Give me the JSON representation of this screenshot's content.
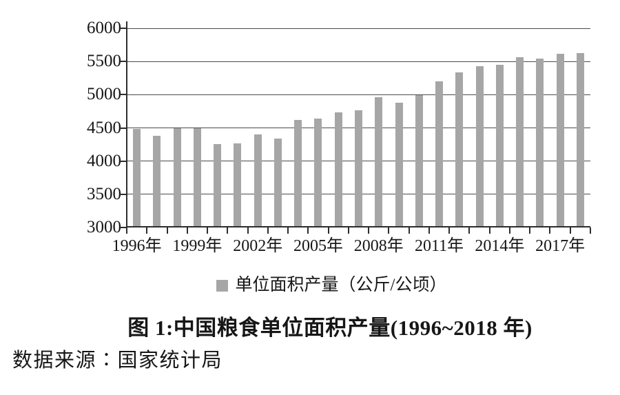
{
  "page": {
    "background": "#ffffff"
  },
  "chart_data": {
    "type": "bar",
    "title": "图 1:中国粮食单位面积产量(1996~2018 年)",
    "legend_label": "单位面积产量（公斤/公顷）",
    "legend_position": "bottom",
    "source_note": "数据来源∶国家统计局",
    "xlabel": "",
    "ylabel": "",
    "ylim": [
      3000,
      6000
    ],
    "y_ticks": [
      3000,
      3500,
      4000,
      4500,
      5000,
      5500,
      6000
    ],
    "grid": true,
    "categories": [
      "1996年",
      "1997年",
      "1998年",
      "1999年",
      "2000年",
      "2001年",
      "2002年",
      "2003年",
      "2004年",
      "2005年",
      "2006年",
      "2007年",
      "2008年",
      "2009年",
      "2010年",
      "2011年",
      "2012年",
      "2013年",
      "2014年",
      "2015年",
      "2016年",
      "2017年",
      "2018年"
    ],
    "values": [
      4480,
      4380,
      4500,
      4495,
      4260,
      4270,
      4400,
      4335,
      4620,
      4640,
      4730,
      4760,
      4960,
      4880,
      4995,
      5205,
      5335,
      5425,
      5455,
      5560,
      5540,
      5615,
      5625
    ],
    "series": [
      {
        "name": "单位面积产量（公斤/公顷）",
        "values": [
          4480,
          4380,
          4500,
          4495,
          4260,
          4270,
          4400,
          4335,
          4620,
          4640,
          4730,
          4760,
          4960,
          4880,
          4995,
          5205,
          5335,
          5425,
          5455,
          5560,
          5540,
          5615,
          5625
        ]
      }
    ],
    "x_tick_labels": [
      "1996年",
      "1999年",
      "2002年",
      "2005年",
      "2008年",
      "2011年",
      "2014年",
      "2017年"
    ],
    "x_tick_indices": [
      0,
      3,
      6,
      9,
      12,
      15,
      18,
      21
    ],
    "bar_color": "#a6a6a6",
    "grid_color": "#4a4a4a",
    "axis_color": "#2c2c2c",
    "text_color": "#161616"
  }
}
